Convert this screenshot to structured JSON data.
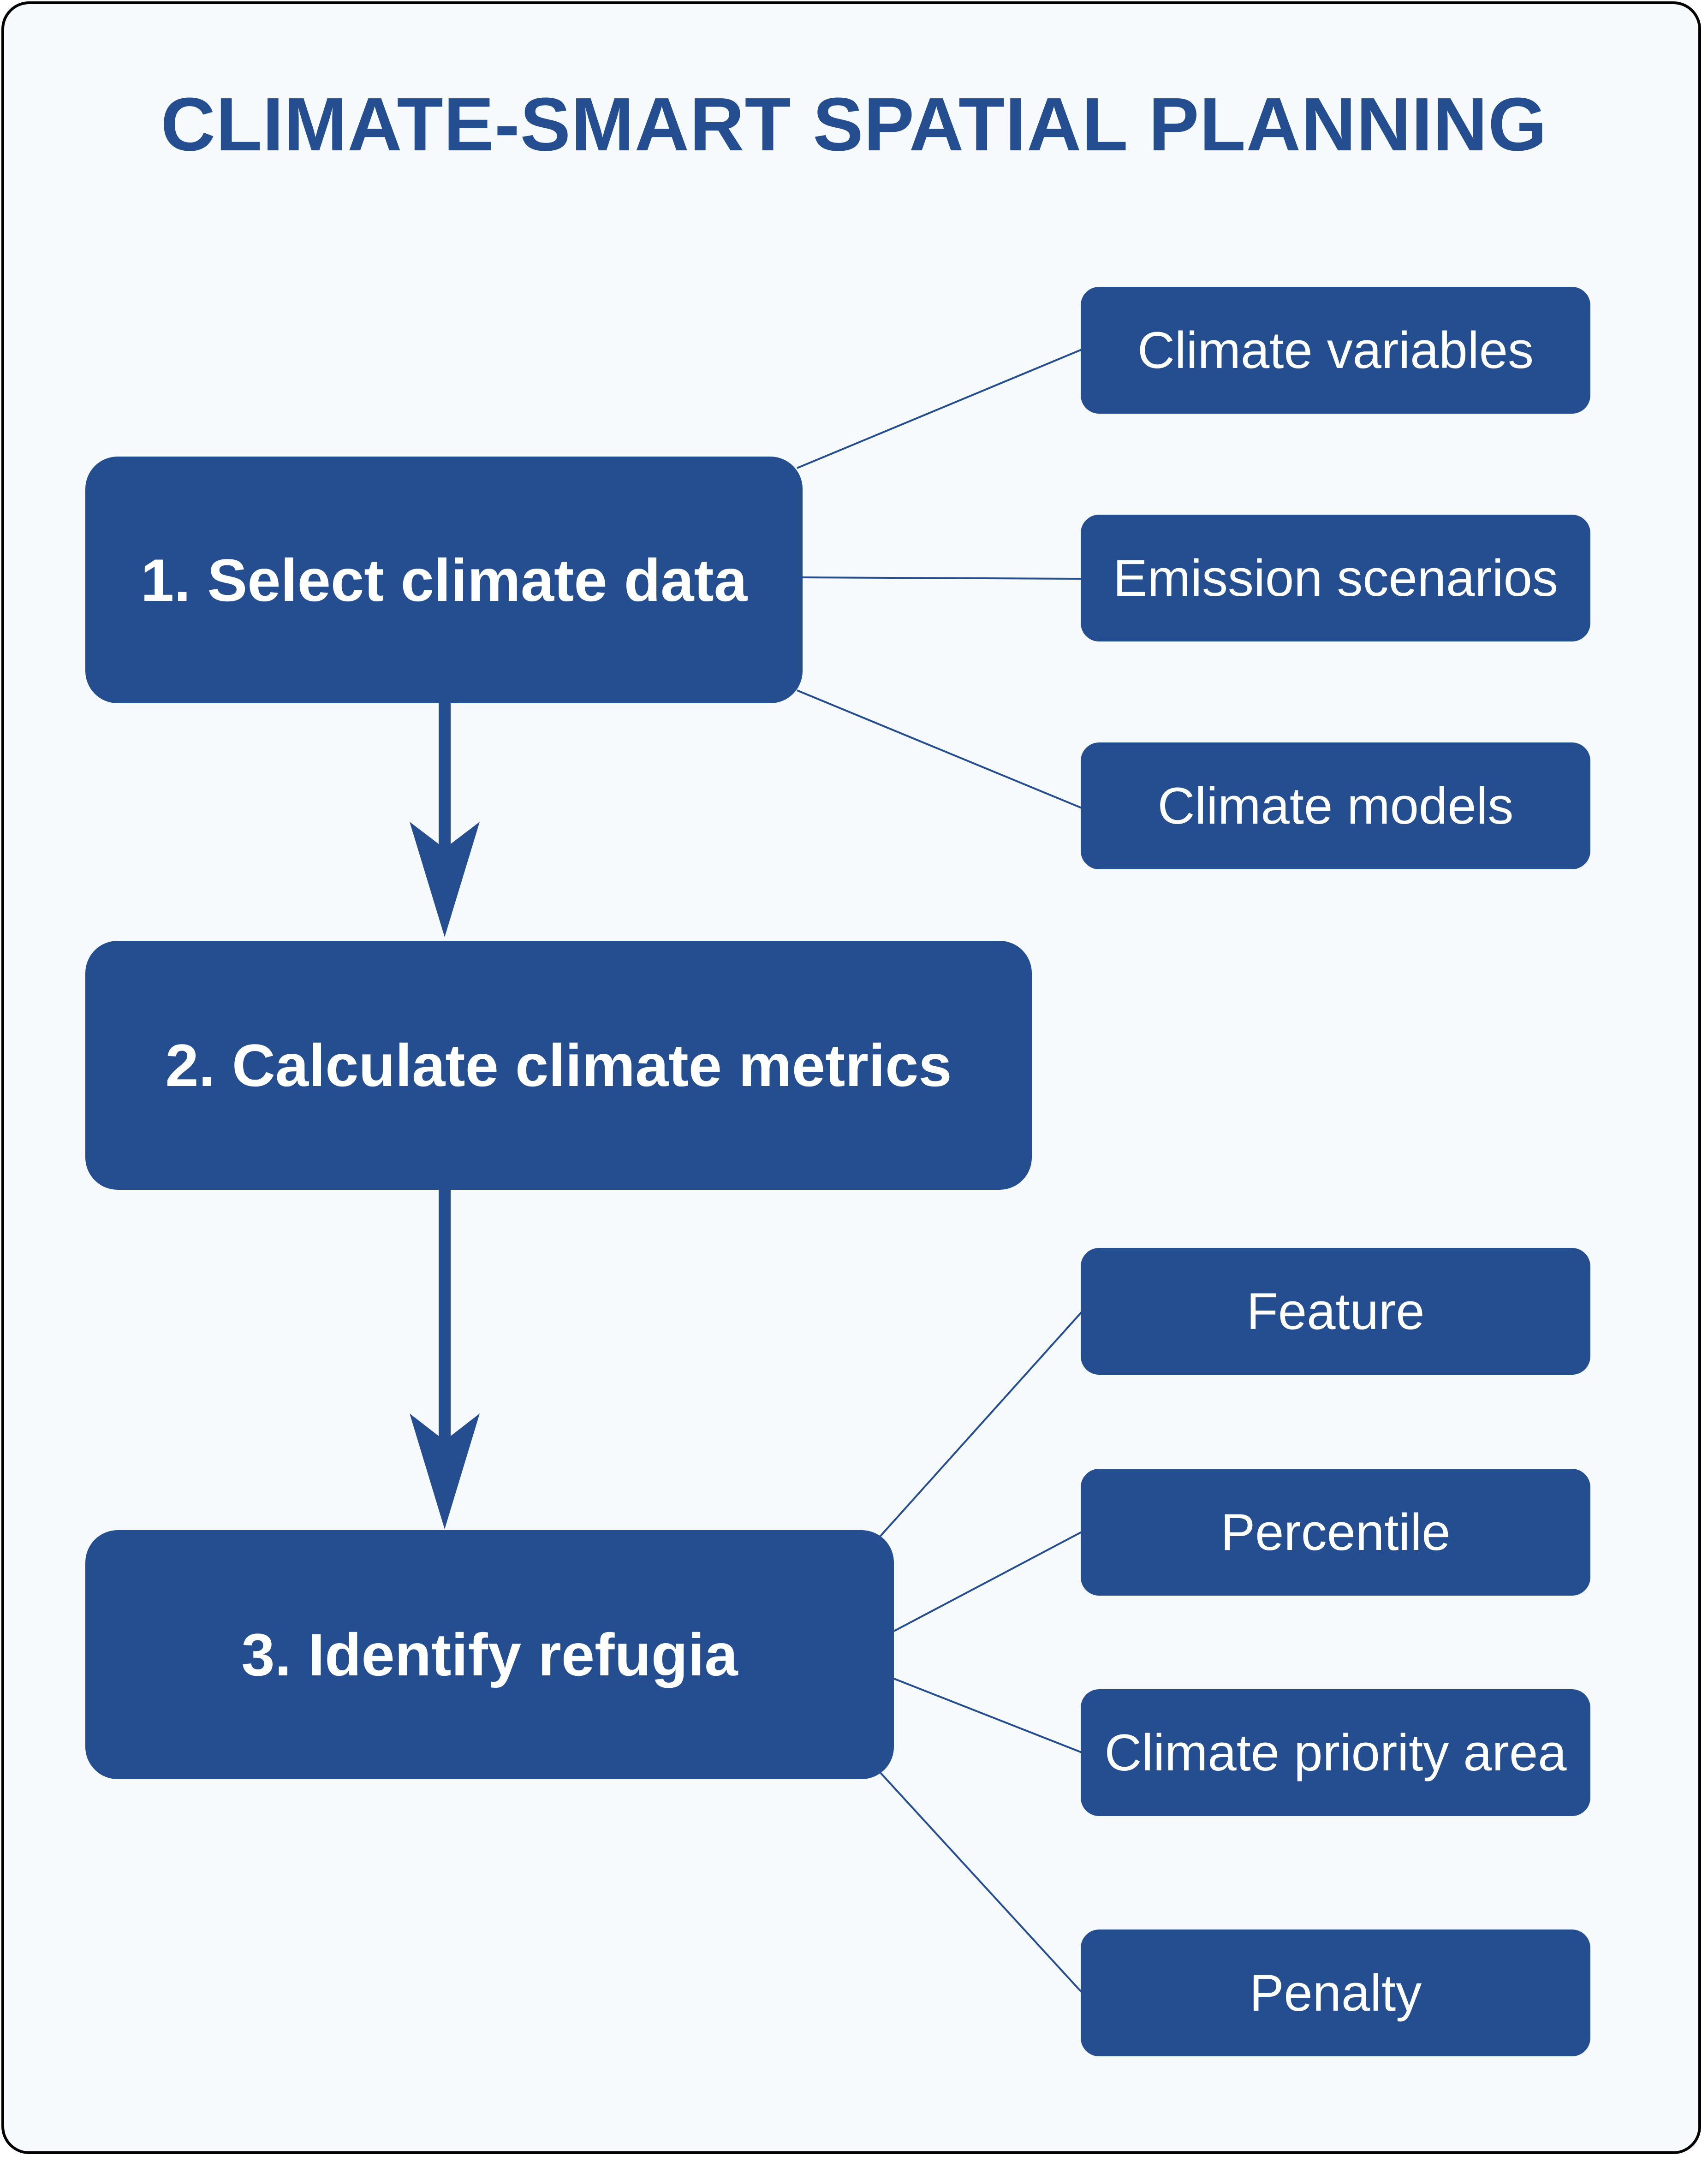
{
  "title": "CLIMATE-SMART SPATIAL PLANNING",
  "colors": {
    "box_fill": "#244e8f",
    "title_text": "#244e8f",
    "background": "#f6fafc",
    "border": "#000000",
    "box_text": "#ffffff"
  },
  "steps": [
    {
      "label": "1. Select climate data"
    },
    {
      "label": "2. Calculate climate metrics"
    },
    {
      "label": "3. Identify refugia"
    }
  ],
  "step1_inputs": [
    {
      "label": "Climate variables"
    },
    {
      "label": "Emission scenarios"
    },
    {
      "label": "Climate models"
    }
  ],
  "step3_outputs": [
    {
      "label": "Feature"
    },
    {
      "label": "Percentile"
    },
    {
      "label": "Climate priority area"
    },
    {
      "label": "Penalty"
    }
  ]
}
